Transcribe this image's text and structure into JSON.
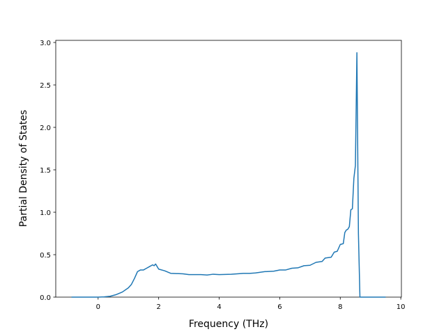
{
  "chart_data": {
    "type": "line",
    "x_label": "Frequency (THz)",
    "y_label": "Partial Density of States",
    "xlim": [
      -1.4,
      10.02
    ],
    "ylim": [
      0,
      3.025
    ],
    "xticks": [
      0,
      2,
      4,
      6,
      8,
      10
    ],
    "yticks": [
      {
        "value": 0,
        "label": "0.0"
      },
      {
        "value": 0.5,
        "label": "0.5"
      },
      {
        "value": 1,
        "label": "1.0"
      },
      {
        "value": 1.5,
        "label": "1.5"
      },
      {
        "value": 2,
        "label": "2.0"
      },
      {
        "value": 2.5,
        "label": "2.5"
      },
      {
        "value": 3,
        "label": "3.0"
      }
    ],
    "series": [
      {
        "color": "#1f77b4",
        "x": [
          -0.88,
          0,
          0.2,
          0.4,
          0.6,
          0.8,
          1.0,
          1.1,
          1.2,
          1.3,
          1.4,
          1.5,
          1.6,
          1.7,
          1.8,
          1.85,
          1.9,
          2.0,
          2.2,
          2.4,
          2.8,
          3.0,
          3.4,
          3.6,
          3.8,
          4.0,
          4.4,
          4.8,
          5.0,
          5.2,
          5.5,
          5.8,
          6.0,
          6.2,
          6.4,
          6.6,
          6.8,
          7.0,
          7.2,
          7.4,
          7.5,
          7.7,
          7.8,
          7.9,
          8.0,
          8.1,
          8.15,
          8.2,
          8.25,
          8.3,
          8.35,
          8.4,
          8.45,
          8.5,
          8.55,
          8.6,
          8.65,
          9.5
        ],
        "values": [
          0,
          0,
          0.003,
          0.01,
          0.03,
          0.06,
          0.11,
          0.15,
          0.22,
          0.3,
          0.32,
          0.32,
          0.34,
          0.36,
          0.38,
          0.37,
          0.39,
          0.33,
          0.31,
          0.28,
          0.275,
          0.265,
          0.265,
          0.26,
          0.27,
          0.265,
          0.27,
          0.28,
          0.28,
          0.285,
          0.3,
          0.305,
          0.32,
          0.32,
          0.34,
          0.345,
          0.37,
          0.375,
          0.41,
          0.42,
          0.46,
          0.47,
          0.53,
          0.54,
          0.62,
          0.63,
          0.76,
          0.79,
          0.8,
          0.83,
          1.03,
          1.04,
          1.4,
          1.55,
          2.88,
          0.75,
          0,
          0
        ]
      }
    ]
  }
}
